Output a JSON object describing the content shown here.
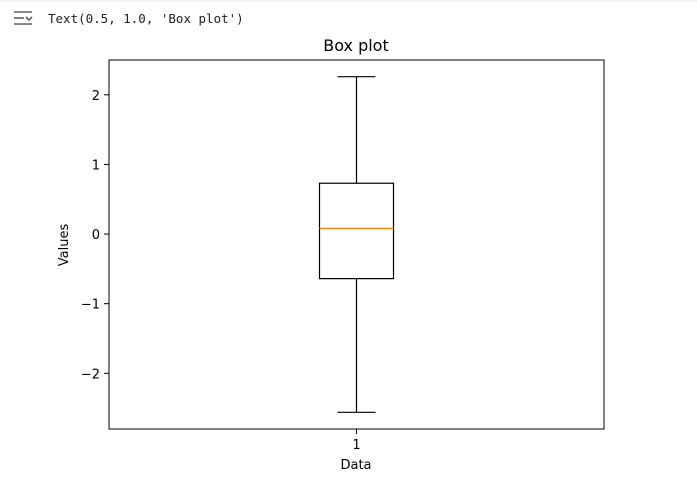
{
  "output_cell": {
    "toggle_icon": "output-collapse-icon",
    "text": "Text(0.5, 1.0, 'Box plot')"
  },
  "chart_data": {
    "type": "box",
    "title": "Box plot",
    "xlabel": "Data",
    "ylabel": "Values",
    "categories": [
      "1"
    ],
    "boxes": [
      {
        "category": "1",
        "whisker_low": -2.56,
        "q1": -0.64,
        "median": 0.08,
        "q3": 0.73,
        "whisker_high": 2.26
      }
    ],
    "yticks": [
      -2,
      -1,
      0,
      1,
      2
    ],
    "ytick_labels": [
      "−2",
      "−1",
      "0",
      "1",
      "2"
    ],
    "ylim": [
      -2.8,
      2.5
    ],
    "grid": false,
    "colors": {
      "box": "#000000",
      "median": "#ff7f0e",
      "whisker": "#000000"
    }
  }
}
